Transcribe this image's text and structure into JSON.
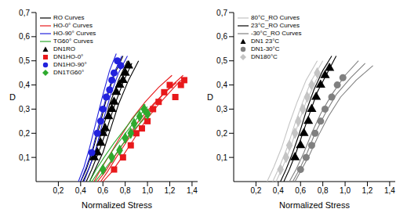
{
  "chart_data": [
    {
      "type": "scatter",
      "x_label": "Normalized Stress",
      "y_label": "D",
      "grid": false,
      "legend": "upper left",
      "xlim": [
        0,
        1.45
      ],
      "ylim": [
        0,
        0.7
      ],
      "xticks": [
        {
          "value": 0.2,
          "label": "0,2"
        },
        {
          "value": 0.4,
          "label": "0,4"
        },
        {
          "value": 0.6,
          "label": "0,6"
        },
        {
          "value": 0.8,
          "label": "0,8"
        },
        {
          "value": 1.0,
          "label": "1,0"
        },
        {
          "value": 1.2,
          "label": "1,2"
        },
        {
          "value": 1.4,
          "label": "1,4"
        }
      ],
      "yticks": [
        {
          "value": 0.1,
          "label": "0,1"
        },
        {
          "value": 0.2,
          "label": "0,2"
        },
        {
          "value": 0.3,
          "label": "0,3"
        },
        {
          "value": 0.4,
          "label": "0,4"
        },
        {
          "value": 0.5,
          "label": "0,5"
        },
        {
          "value": 0.6,
          "label": "0,6"
        },
        {
          "value": 0.7,
          "label": "0,7"
        }
      ],
      "series": [
        {
          "name": "RO Curves",
          "type": "line",
          "color": "#000000",
          "curves": [
            {
              "x": [
                0.42,
                0.47,
                0.53,
                0.6,
                0.66,
                0.74,
                0.82
              ],
              "values": [
                0,
                0.05,
                0.12,
                0.22,
                0.32,
                0.42,
                0.5
              ]
            },
            {
              "x": [
                0.45,
                0.5,
                0.56,
                0.63,
                0.7,
                0.78,
                0.86
              ],
              "values": [
                0,
                0.05,
                0.12,
                0.21,
                0.31,
                0.41,
                0.49
              ]
            },
            {
              "x": [
                0.48,
                0.53,
                0.6,
                0.67,
                0.74,
                0.83,
                0.92
              ],
              "values": [
                0,
                0.05,
                0.12,
                0.22,
                0.32,
                0.42,
                0.5
              ]
            },
            {
              "x": [
                0.4,
                0.45,
                0.51,
                0.57,
                0.63,
                0.7,
                0.78
              ],
              "values": [
                0,
                0.05,
                0.13,
                0.23,
                0.34,
                0.44,
                0.52
              ]
            }
          ]
        },
        {
          "name": "HO-0° Curves",
          "type": "line",
          "color": "#e8191b",
          "curves": [
            {
              "x": [
                0.55,
                0.62,
                0.7,
                0.8,
                0.92,
                1.05,
                1.2,
                1.32
              ],
              "values": [
                0,
                0.04,
                0.1,
                0.17,
                0.25,
                0.32,
                0.39,
                0.44
              ]
            },
            {
              "x": [
                0.6,
                0.68,
                0.77,
                0.87,
                0.98,
                1.1,
                1.22,
                1.3
              ],
              "values": [
                0,
                0.04,
                0.1,
                0.17,
                0.25,
                0.32,
                0.38,
                0.42
              ]
            },
            {
              "x": [
                0.52,
                0.58,
                0.66,
                0.75,
                0.86,
                0.98,
                1.1,
                1.22
              ],
              "values": [
                0,
                0.05,
                0.11,
                0.18,
                0.26,
                0.33,
                0.39,
                0.44
              ]
            },
            {
              "x": [
                0.58,
                0.64,
                0.72,
                0.82,
                0.93,
                1.04,
                1.16,
                1.26
              ],
              "values": [
                0,
                0.04,
                0.1,
                0.17,
                0.24,
                0.31,
                0.37,
                0.41
              ]
            }
          ]
        },
        {
          "name": "HO-90° Curves",
          "type": "line",
          "color": "#2222dd",
          "curves": [
            {
              "x": [
                0.38,
                0.43,
                0.48,
                0.54,
                0.6,
                0.66,
                0.72
              ],
              "values": [
                0,
                0.06,
                0.14,
                0.25,
                0.36,
                0.46,
                0.53
              ]
            },
            {
              "x": [
                0.4,
                0.45,
                0.51,
                0.57,
                0.63,
                0.7,
                0.77
              ],
              "values": [
                0,
                0.06,
                0.14,
                0.25,
                0.35,
                0.45,
                0.52
              ]
            },
            {
              "x": [
                0.43,
                0.48,
                0.54,
                0.6,
                0.67,
                0.74,
                0.82
              ],
              "values": [
                0,
                0.06,
                0.14,
                0.25,
                0.36,
                0.45,
                0.52
              ]
            }
          ]
        },
        {
          "name": "TG60° Curves",
          "type": "line",
          "color": "#2eaa2e",
          "curves": [
            {
              "x": [
                0.5,
                0.56,
                0.63,
                0.72,
                0.82,
                0.92,
                1.0
              ],
              "values": [
                0,
                0.04,
                0.09,
                0.15,
                0.21,
                0.27,
                0.31
              ]
            },
            {
              "x": [
                0.53,
                0.6,
                0.68,
                0.77,
                0.87,
                0.97,
                1.04
              ],
              "values": [
                0,
                0.04,
                0.09,
                0.15,
                0.21,
                0.26,
                0.3
              ]
            },
            {
              "x": [
                0.48,
                0.54,
                0.61,
                0.7,
                0.8,
                0.9,
                0.98
              ],
              "values": [
                0,
                0.05,
                0.1,
                0.16,
                0.22,
                0.28,
                0.32
              ]
            }
          ]
        },
        {
          "name": "DN1RO",
          "type": "scatter",
          "color": "#000000",
          "marker": "triangle",
          "x": [
            0.52,
            0.55,
            0.58,
            0.6,
            0.62,
            0.65,
            0.68,
            0.7,
            0.72,
            0.75,
            0.78,
            0.8,
            0.83
          ],
          "values": [
            0.1,
            0.12,
            0.16,
            0.2,
            0.22,
            0.27,
            0.3,
            0.33,
            0.37,
            0.4,
            0.42,
            0.45,
            0.48
          ]
        },
        {
          "name": "DN1HO-0°",
          "type": "scatter",
          "color": "#e8191b",
          "marker": "square",
          "x": [
            0.7,
            0.78,
            0.85,
            0.9,
            0.95,
            1.0,
            1.05,
            1.1,
            1.15,
            1.2,
            1.25,
            1.3,
            1.33
          ],
          "values": [
            0.05,
            0.1,
            0.15,
            0.2,
            0.22,
            0.25,
            0.3,
            0.33,
            0.37,
            0.4,
            0.35,
            0.4,
            0.42
          ]
        },
        {
          "name": "DN1HO-90°",
          "type": "scatter",
          "color": "#2222dd",
          "marker": "circle",
          "x": [
            0.5,
            0.55,
            0.58,
            0.6,
            0.63,
            0.66,
            0.68,
            0.7,
            0.73,
            0.76
          ],
          "values": [
            0.12,
            0.2,
            0.25,
            0.3,
            0.35,
            0.38,
            0.42,
            0.45,
            0.5,
            0.48
          ]
        },
        {
          "name": "DN1TG60°",
          "type": "scatter",
          "color": "#2eaa2e",
          "marker": "diamond",
          "x": [
            0.6,
            0.68,
            0.75,
            0.8,
            0.85,
            0.88,
            0.93,
            0.97,
            1.0
          ],
          "values": [
            0.05,
            0.1,
            0.13,
            0.18,
            0.2,
            0.24,
            0.27,
            0.3,
            0.28
          ]
        }
      ]
    },
    {
      "type": "scatter",
      "x_label": "Normalized Stress",
      "y_label": "D",
      "grid": false,
      "legend": "upper left",
      "xlim": [
        0,
        1.45
      ],
      "ylim": [
        0,
        0.7
      ],
      "xticks": [
        {
          "value": 0.2,
          "label": "0,2"
        },
        {
          "value": 0.4,
          "label": "0,4"
        },
        {
          "value": 0.6,
          "label": "0,6"
        },
        {
          "value": 0.8,
          "label": "0,8"
        },
        {
          "value": 1.0,
          "label": "1,0"
        },
        {
          "value": 1.2,
          "label": "1,2"
        },
        {
          "value": 1.4,
          "label": "1,4"
        }
      ],
      "yticks": [
        {
          "value": 0.1,
          "label": "0,1"
        },
        {
          "value": 0.2,
          "label": "0,2"
        },
        {
          "value": 0.3,
          "label": "0,3"
        },
        {
          "value": 0.4,
          "label": "0,4"
        },
        {
          "value": 0.5,
          "label": "0,5"
        },
        {
          "value": 0.6,
          "label": "0,6"
        },
        {
          "value": 0.7,
          "label": "0,7"
        }
      ],
      "series": [
        {
          "name": "80°C_RO Curves",
          "type": "line",
          "color": "#c4c4c4",
          "curves": [
            {
              "x": [
                0.3,
                0.36,
                0.43,
                0.5,
                0.57,
                0.65,
                0.75
              ],
              "values": [
                0,
                0.06,
                0.14,
                0.24,
                0.33,
                0.42,
                0.5
              ]
            },
            {
              "x": [
                0.35,
                0.41,
                0.48,
                0.55,
                0.62,
                0.7,
                0.8
              ],
              "values": [
                0,
                0.06,
                0.14,
                0.24,
                0.33,
                0.42,
                0.5
              ]
            },
            {
              "x": [
                0.38,
                0.44,
                0.51,
                0.58,
                0.65,
                0.74,
                0.85
              ],
              "values": [
                0,
                0.06,
                0.14,
                0.24,
                0.33,
                0.42,
                0.49
              ]
            }
          ]
        },
        {
          "name": "23°C_RO Curves",
          "type": "line",
          "color": "#000000",
          "curves": [
            {
              "x": [
                0.45,
                0.5,
                0.56,
                0.62,
                0.68,
                0.75,
                0.84,
                0.92
              ],
              "values": [
                0,
                0.05,
                0.12,
                0.2,
                0.28,
                0.37,
                0.45,
                0.52
              ]
            },
            {
              "x": [
                0.42,
                0.47,
                0.53,
                0.59,
                0.65,
                0.72,
                0.8,
                0.88
              ],
              "values": [
                0,
                0.05,
                0.12,
                0.2,
                0.29,
                0.38,
                0.46,
                0.52
              ]
            }
          ]
        },
        {
          "name": "-30°C_RO Curves",
          "type": "line",
          "color": "#808080",
          "curves": [
            {
              "x": [
                0.5,
                0.56,
                0.63,
                0.7,
                0.78,
                0.88,
                1.0,
                1.12
              ],
              "values": [
                0,
                0.05,
                0.12,
                0.2,
                0.28,
                0.36,
                0.44,
                0.5
              ]
            },
            {
              "x": [
                0.55,
                0.61,
                0.68,
                0.76,
                0.85,
                0.96,
                1.1,
                1.25
              ],
              "values": [
                0,
                0.05,
                0.11,
                0.19,
                0.27,
                0.35,
                0.42,
                0.48
              ]
            },
            {
              "x": [
                0.53,
                0.59,
                0.66,
                0.73,
                0.82,
                0.92,
                1.05,
                1.18
              ],
              "values": [
                0,
                0.05,
                0.12,
                0.2,
                0.28,
                0.36,
                0.43,
                0.49
              ]
            }
          ]
        },
        {
          "name": "DN1 23°C",
          "type": "scatter",
          "color": "#000000",
          "marker": "triangle",
          "x": [
            0.55,
            0.6,
            0.63,
            0.67,
            0.7,
            0.74,
            0.78,
            0.82,
            0.86
          ],
          "values": [
            0.1,
            0.15,
            0.2,
            0.25,
            0.3,
            0.35,
            0.4,
            0.44,
            0.47
          ]
        },
        {
          "name": "DN1-30°C",
          "type": "scatter",
          "color": "#808080",
          "marker": "circle",
          "x": [
            0.6,
            0.65,
            0.7,
            0.73,
            0.78,
            0.82,
            0.88,
            0.93,
            0.98
          ],
          "values": [
            0.05,
            0.1,
            0.15,
            0.2,
            0.25,
            0.3,
            0.35,
            0.4,
            0.43
          ]
        },
        {
          "name": "DN180°C",
          "type": "scatter",
          "color": "#c4c4c4",
          "marker": "diamond",
          "x": [
            0.42,
            0.47,
            0.5,
            0.55,
            0.58,
            0.62,
            0.66,
            0.7,
            0.75
          ],
          "values": [
            0.05,
            0.1,
            0.15,
            0.2,
            0.25,
            0.3,
            0.35,
            0.4,
            0.45
          ]
        }
      ]
    }
  ]
}
